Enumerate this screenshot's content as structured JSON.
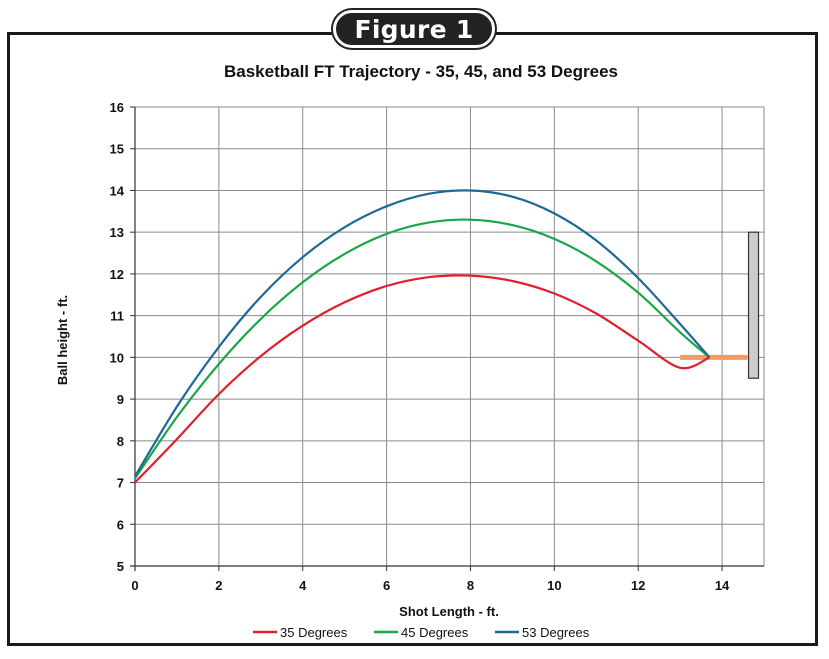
{
  "figure_label": "Figure 1",
  "chart_data": {
    "type": "line",
    "title": "Basketball FT Trajectory - 35, 45, and 53 Degrees",
    "xlabel": "Shot Length - ft.",
    "ylabel": "Ball height - ft.",
    "xlim": [
      0,
      15
    ],
    "ylim": [
      5,
      16
    ],
    "xticks": [
      0,
      2,
      4,
      6,
      8,
      10,
      12,
      14
    ],
    "yticks": [
      5,
      6,
      7,
      8,
      9,
      10,
      11,
      12,
      13,
      14,
      15,
      16
    ],
    "grid": true,
    "legend": "bottom",
    "series": [
      {
        "name": "35 Degrees",
        "color": "#e0202e",
        "x": [
          0,
          1,
          2,
          3,
          4,
          5,
          6,
          7,
          8,
          9,
          10,
          11,
          12,
          13,
          13.7
        ],
        "y": [
          7.0,
          8.04,
          9.12,
          10.03,
          10.76,
          11.32,
          11.71,
          11.92,
          11.96,
          11.83,
          11.53,
          11.05,
          10.4,
          9.75,
          10.0
        ]
      },
      {
        "name": "45 Degrees",
        "color": "#1aa64a",
        "x": [
          0,
          1,
          2,
          3,
          4,
          5,
          6,
          7,
          8,
          9,
          10,
          11,
          12,
          13,
          13.7
        ],
        "y": [
          7.1,
          8.57,
          9.84,
          10.92,
          11.8,
          12.48,
          12.96,
          13.23,
          13.3,
          13.17,
          12.84,
          12.3,
          11.55,
          10.6,
          10.0
        ]
      },
      {
        "name": "53 Degrees",
        "color": "#1d6a96",
        "x": [
          0,
          1,
          2,
          3,
          4,
          5,
          6,
          7,
          8,
          9,
          10,
          11,
          12,
          13,
          13.7
        ],
        "y": [
          7.15,
          8.82,
          10.25,
          11.45,
          12.4,
          13.12,
          13.62,
          13.92,
          14.0,
          13.85,
          13.45,
          12.8,
          11.9,
          10.8,
          10.0
        ]
      }
    ],
    "rim": {
      "x": [
        13.0,
        14.6
      ],
      "y": 10.0,
      "color": "#f39a5c"
    },
    "backboard": {
      "x": 14.75,
      "y": [
        9.5,
        13.0
      ],
      "color": "#cccccc"
    }
  }
}
